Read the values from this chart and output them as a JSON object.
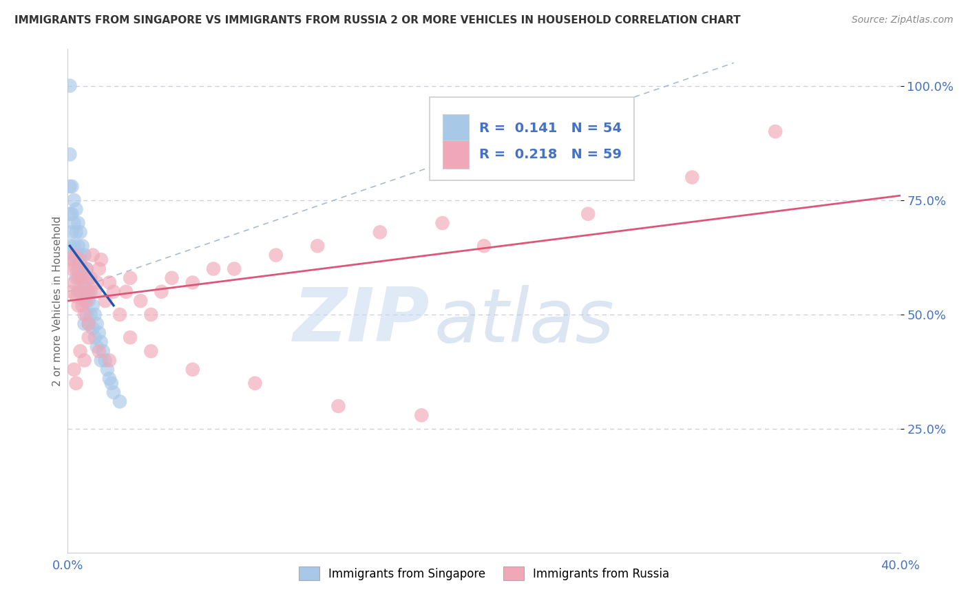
{
  "title": "IMMIGRANTS FROM SINGAPORE VS IMMIGRANTS FROM RUSSIA 2 OR MORE VEHICLES IN HOUSEHOLD CORRELATION CHART",
  "source": "Source: ZipAtlas.com",
  "ylabel": "2 or more Vehicles in Household",
  "xlim": [
    0.0,
    0.4
  ],
  "ylim": [
    -0.02,
    1.08
  ],
  "singapore_R": 0.141,
  "singapore_N": 54,
  "russia_R": 0.218,
  "russia_N": 59,
  "singapore_color": "#a8c8e8",
  "russia_color": "#f0a8b8",
  "singapore_line_color": "#2255aa",
  "russia_line_color": "#dd5577",
  "ref_line_color": "#aabbcc",
  "grid_color": "#ccccdd",
  "legend_label_singapore": "Immigrants from Singapore",
  "legend_label_russia": "Immigrants from Russia",
  "watermark_zip": "ZIP",
  "watermark_atlas": "atlas",
  "watermark_color_zip": "#c5d8f0",
  "watermark_color_atlas": "#b0c8e0",
  "tick_color": "#4472c4",
  "sg_x": [
    0.001,
    0.001,
    0.001,
    0.001,
    0.002,
    0.002,
    0.002,
    0.003,
    0.003,
    0.003,
    0.003,
    0.004,
    0.004,
    0.004,
    0.004,
    0.005,
    0.005,
    0.005,
    0.005,
    0.006,
    0.006,
    0.006,
    0.007,
    0.007,
    0.007,
    0.008,
    0.008,
    0.008,
    0.008,
    0.009,
    0.009,
    0.009,
    0.01,
    0.01,
    0.01,
    0.011,
    0.011,
    0.012,
    0.012,
    0.013,
    0.013,
    0.014,
    0.014,
    0.015,
    0.016,
    0.016,
    0.017,
    0.018,
    0.019,
    0.02,
    0.021,
    0.022,
    0.025,
    0.001
  ],
  "sg_y": [
    1.0,
    0.78,
    0.72,
    0.65,
    0.78,
    0.72,
    0.68,
    0.75,
    0.7,
    0.65,
    0.62,
    0.73,
    0.68,
    0.63,
    0.58,
    0.7,
    0.65,
    0.6,
    0.55,
    0.68,
    0.63,
    0.58,
    0.65,
    0.6,
    0.55,
    0.63,
    0.58,
    0.53,
    0.48,
    0.6,
    0.55,
    0.5,
    0.58,
    0.53,
    0.48,
    0.55,
    0.5,
    0.52,
    0.47,
    0.5,
    0.45,
    0.48,
    0.43,
    0.46,
    0.44,
    0.4,
    0.42,
    0.4,
    0.38,
    0.36,
    0.35,
    0.33,
    0.31,
    0.85
  ],
  "ru_x": [
    0.001,
    0.002,
    0.002,
    0.003,
    0.003,
    0.004,
    0.004,
    0.005,
    0.005,
    0.006,
    0.006,
    0.007,
    0.007,
    0.008,
    0.008,
    0.009,
    0.009,
    0.01,
    0.01,
    0.011,
    0.012,
    0.013,
    0.014,
    0.015,
    0.016,
    0.018,
    0.02,
    0.022,
    0.025,
    0.028,
    0.03,
    0.035,
    0.04,
    0.045,
    0.05,
    0.06,
    0.07,
    0.08,
    0.1,
    0.12,
    0.15,
    0.18,
    0.2,
    0.25,
    0.3,
    0.34,
    0.003,
    0.004,
    0.006,
    0.008,
    0.01,
    0.015,
    0.02,
    0.03,
    0.04,
    0.06,
    0.09,
    0.13,
    0.17
  ],
  "ru_y": [
    0.62,
    0.6,
    0.55,
    0.63,
    0.57,
    0.6,
    0.54,
    0.58,
    0.52,
    0.62,
    0.55,
    0.58,
    0.52,
    0.56,
    0.5,
    0.6,
    0.53,
    0.55,
    0.48,
    0.58,
    0.63,
    0.55,
    0.57,
    0.6,
    0.62,
    0.53,
    0.57,
    0.55,
    0.5,
    0.55,
    0.58,
    0.53,
    0.5,
    0.55,
    0.58,
    0.57,
    0.6,
    0.6,
    0.63,
    0.65,
    0.68,
    0.7,
    0.65,
    0.72,
    0.8,
    0.9,
    0.38,
    0.35,
    0.42,
    0.4,
    0.45,
    0.42,
    0.4,
    0.45,
    0.42,
    0.38,
    0.35,
    0.3,
    0.28
  ],
  "sg_trendline_x": [
    0.001,
    0.022
  ],
  "sg_trendline_y": [
    0.65,
    0.52
  ],
  "ru_trendline_x": [
    0.0,
    0.4
  ],
  "ru_trendline_y": [
    0.53,
    0.76
  ],
  "ref_line_x": [
    0.0,
    0.32
  ],
  "ref_line_y": [
    0.55,
    1.05
  ]
}
